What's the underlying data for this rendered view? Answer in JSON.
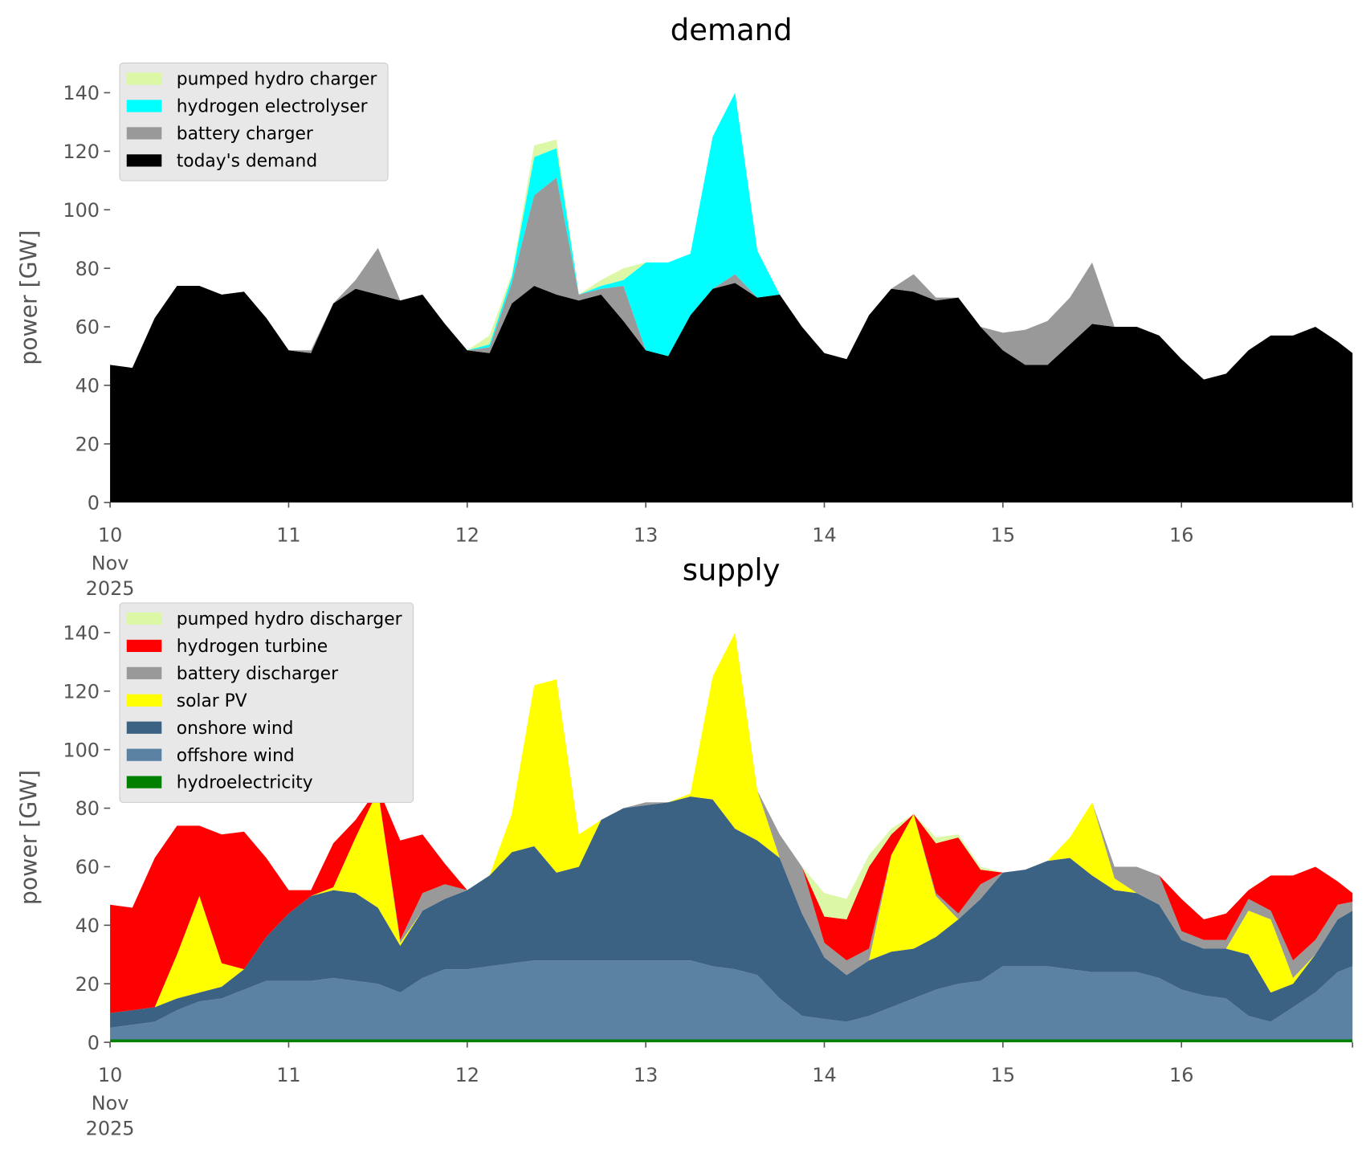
{
  "chart_data": [
    {
      "type": "area",
      "stacked": true,
      "title": "demand",
      "ylabel": "power [GW]",
      "xlabel": "",
      "xlim": [
        10,
        16.958
      ],
      "ylim": [
        0,
        152
      ],
      "yticks": [
        0,
        20,
        40,
        60,
        80,
        100,
        120,
        140
      ],
      "xticks": [
        10,
        11,
        12,
        13,
        14,
        15,
        16
      ],
      "x_tick_labels": [
        "10",
        "11",
        "12",
        "13",
        "14",
        "15",
        "16"
      ],
      "x_tick_sublabels": [
        "Nov",
        "2025"
      ],
      "grid": false,
      "legend_position": "top-left",
      "x": [
        10,
        10.125,
        10.25,
        10.375,
        10.5,
        10.625,
        10.75,
        10.875,
        11,
        11.125,
        11.25,
        11.375,
        11.5,
        11.625,
        11.75,
        11.875,
        12,
        12.125,
        12.25,
        12.375,
        12.5,
        12.625,
        12.75,
        12.875,
        13,
        13.125,
        13.25,
        13.375,
        13.5,
        13.625,
        13.75,
        13.875,
        14,
        14.125,
        14.25,
        14.375,
        14.5,
        14.625,
        14.75,
        14.875,
        15,
        15.125,
        15.25,
        15.375,
        15.5,
        15.625,
        15.75,
        15.875,
        16,
        16.125,
        16.25,
        16.375,
        16.5,
        16.625,
        16.75,
        16.875,
        16.958
      ],
      "series": [
        {
          "name": "today's demand",
          "color": "#000000",
          "values": [
            47,
            46,
            63,
            74,
            74,
            71,
            72,
            63,
            52,
            51,
            68,
            73,
            71,
            69,
            71,
            61,
            52,
            51,
            68,
            74,
            71,
            69,
            71,
            62,
            52,
            50,
            64,
            73,
            75,
            70,
            71,
            60,
            51,
            49,
            64,
            73,
            72,
            69,
            70,
            60,
            52,
            47,
            47,
            54,
            61,
            60,
            60,
            57,
            49,
            42,
            44,
            52,
            57,
            57,
            60,
            55,
            51
          ]
        },
        {
          "name": "battery charger",
          "color": "#999999",
          "values": [
            0,
            0,
            0,
            0,
            0,
            0,
            0,
            0,
            0,
            1,
            0,
            3,
            16,
            0,
            0,
            0,
            0,
            2,
            7,
            31,
            40,
            2,
            2,
            12,
            0,
            0,
            0,
            0,
            3,
            0,
            0,
            0,
            0,
            0,
            0,
            0,
            6,
            1,
            0,
            0,
            6,
            12,
            15,
            16,
            21,
            0,
            0,
            0,
            0,
            0,
            0,
            0,
            0,
            0,
            0,
            0,
            0
          ]
        },
        {
          "name": "hydrogen electrolyser",
          "color": "#00ffff",
          "values": [
            0,
            0,
            0,
            0,
            0,
            0,
            0,
            0,
            0,
            0,
            0,
            0,
            0,
            0,
            0,
            0,
            0,
            1,
            2,
            13,
            10,
            0,
            1,
            2,
            30,
            32,
            21,
            52,
            62,
            16,
            0,
            0,
            0,
            0,
            0,
            0,
            0,
            0,
            0,
            0,
            0,
            0,
            0,
            0,
            0,
            0,
            0,
            0,
            0,
            0,
            0,
            0,
            0,
            0,
            0,
            0,
            0
          ]
        },
        {
          "name": "pumped hydro charger",
          "color": "#dcf7a6",
          "values": [
            0,
            0,
            0,
            0,
            0,
            0,
            0,
            0,
            0,
            0,
            0,
            0,
            0,
            0,
            0,
            0,
            0,
            3,
            1,
            4,
            3,
            0,
            2,
            4,
            0,
            0,
            0,
            0,
            0,
            0,
            0,
            0,
            0,
            0,
            0,
            0,
            0,
            0,
            0,
            0,
            0,
            0,
            0,
            0,
            0,
            0,
            0,
            0,
            0,
            0,
            0,
            0,
            0,
            0,
            0,
            0,
            0
          ]
        }
      ]
    },
    {
      "type": "area",
      "stacked": true,
      "title": "supply",
      "ylabel": "power [GW]",
      "xlabel": "",
      "xlim": [
        10,
        16.958
      ],
      "ylim": [
        0,
        152
      ],
      "yticks": [
        0,
        20,
        40,
        60,
        80,
        100,
        120,
        140
      ],
      "xticks": [
        10,
        11,
        12,
        13,
        14,
        15,
        16
      ],
      "x_tick_labels": [
        "10",
        "11",
        "12",
        "13",
        "14",
        "15",
        "16"
      ],
      "x_tick_sublabels": [
        "Nov",
        "2025"
      ],
      "grid": false,
      "legend_position": "top-left",
      "x": [
        10,
        10.125,
        10.25,
        10.375,
        10.5,
        10.625,
        10.75,
        10.875,
        11,
        11.125,
        11.25,
        11.375,
        11.5,
        11.625,
        11.75,
        11.875,
        12,
        12.125,
        12.25,
        12.375,
        12.5,
        12.625,
        12.75,
        12.875,
        13,
        13.125,
        13.25,
        13.375,
        13.5,
        13.625,
        13.75,
        13.875,
        14,
        14.125,
        14.25,
        14.375,
        14.5,
        14.625,
        14.75,
        14.875,
        15,
        15.125,
        15.25,
        15.375,
        15.5,
        15.625,
        15.75,
        15.875,
        16,
        16.125,
        16.25,
        16.375,
        16.5,
        16.625,
        16.75,
        16.875,
        16.958
      ],
      "series": [
        {
          "name": "hydroelectricity",
          "color": "#008000",
          "values": [
            1,
            1,
            1,
            1,
            1,
            1,
            1,
            1,
            1,
            1,
            1,
            1,
            1,
            1,
            1,
            1,
            1,
            1,
            1,
            1,
            1,
            1,
            1,
            1,
            1,
            1,
            1,
            1,
            1,
            1,
            1,
            1,
            1,
            1,
            1,
            1,
            1,
            1,
            1,
            1,
            1,
            1,
            1,
            1,
            1,
            1,
            1,
            1,
            1,
            1,
            1,
            1,
            1,
            1,
            1,
            1,
            1
          ]
        },
        {
          "name": "offshore wind",
          "color": "#5b81a3",
          "values": [
            4,
            5,
            6,
            10,
            13,
            14,
            17,
            20,
            20,
            20,
            21,
            20,
            19,
            16,
            21,
            24,
            24,
            25,
            26,
            27,
            27,
            27,
            27,
            27,
            27,
            27,
            27,
            25,
            24,
            22,
            14,
            8,
            7,
            6,
            8,
            11,
            14,
            17,
            19,
            20,
            25,
            25,
            25,
            24,
            23,
            23,
            23,
            21,
            17,
            15,
            14,
            8,
            6,
            11,
            16,
            23,
            25
          ]
        },
        {
          "name": "onshore wind",
          "color": "#3b6283",
          "values": [
            5,
            5,
            5,
            4,
            3,
            4,
            7,
            15,
            23,
            29,
            30,
            30,
            26,
            16,
            23,
            24,
            27,
            31,
            38,
            39,
            30,
            32,
            48,
            52,
            53,
            54,
            56,
            57,
            48,
            46,
            48,
            35,
            21,
            16,
            19,
            19,
            17,
            18,
            22,
            28,
            32,
            33,
            36,
            38,
            33,
            28,
            27,
            25,
            17,
            16,
            17,
            21,
            10,
            8,
            13,
            18,
            19
          ]
        },
        {
          "name": "solar PV",
          "color": "#ffff00",
          "values": [
            0,
            0,
            0,
            15,
            33,
            8,
            0,
            0,
            0,
            0,
            1,
            19,
            40,
            1,
            0,
            0,
            0,
            0,
            13,
            55,
            66,
            11,
            0,
            0,
            0,
            0,
            1,
            42,
            67,
            17,
            0,
            0,
            0,
            0,
            0,
            33,
            46,
            14,
            0,
            0,
            0,
            0,
            0,
            7,
            25,
            4,
            0,
            0,
            0,
            0,
            0,
            15,
            25,
            2,
            0,
            0,
            0
          ]
        },
        {
          "name": "battery discharger",
          "color": "#999999",
          "values": [
            0,
            0,
            0,
            0,
            0,
            0,
            0,
            0,
            0,
            0,
            0,
            0,
            0,
            1,
            6,
            5,
            0,
            0,
            0,
            0,
            0,
            0,
            0,
            0,
            1,
            0,
            0,
            0,
            0,
            0,
            8,
            16,
            5,
            5,
            4,
            0,
            0,
            1,
            2,
            5,
            0,
            0,
            0,
            0,
            0,
            4,
            9,
            10,
            3,
            3,
            3,
            4,
            3,
            6,
            5,
            5,
            3
          ]
        },
        {
          "name": "hydrogen turbine",
          "color": "#ff0000",
          "values": [
            37,
            35,
            51,
            44,
            24,
            44,
            47,
            27,
            8,
            2,
            15,
            6,
            1,
            34,
            20,
            7,
            0,
            0,
            0,
            0,
            0,
            0,
            0,
            0,
            0,
            0,
            0,
            0,
            0,
            0,
            0,
            0,
            9,
            14,
            28,
            7,
            0,
            17,
            26,
            5,
            0,
            0,
            0,
            0,
            0,
            0,
            0,
            0,
            11,
            7,
            9,
            3,
            12,
            29,
            25,
            8,
            3
          ]
        },
        {
          "name": "pumped hydro discharger",
          "color": "#dcf7a6",
          "values": [
            0,
            0,
            0,
            0,
            0,
            0,
            0,
            0,
            0,
            0,
            0,
            0,
            0,
            0,
            0,
            0,
            0,
            0,
            0,
            0,
            0,
            0,
            0,
            0,
            0,
            0,
            0,
            0,
            0,
            0,
            0,
            0,
            8,
            7,
            4,
            2,
            0,
            2,
            1,
            1,
            0,
            0,
            0,
            0,
            0,
            0,
            0,
            0,
            0,
            0,
            0,
            0,
            0,
            0,
            0,
            0,
            0
          ]
        }
      ]
    }
  ]
}
